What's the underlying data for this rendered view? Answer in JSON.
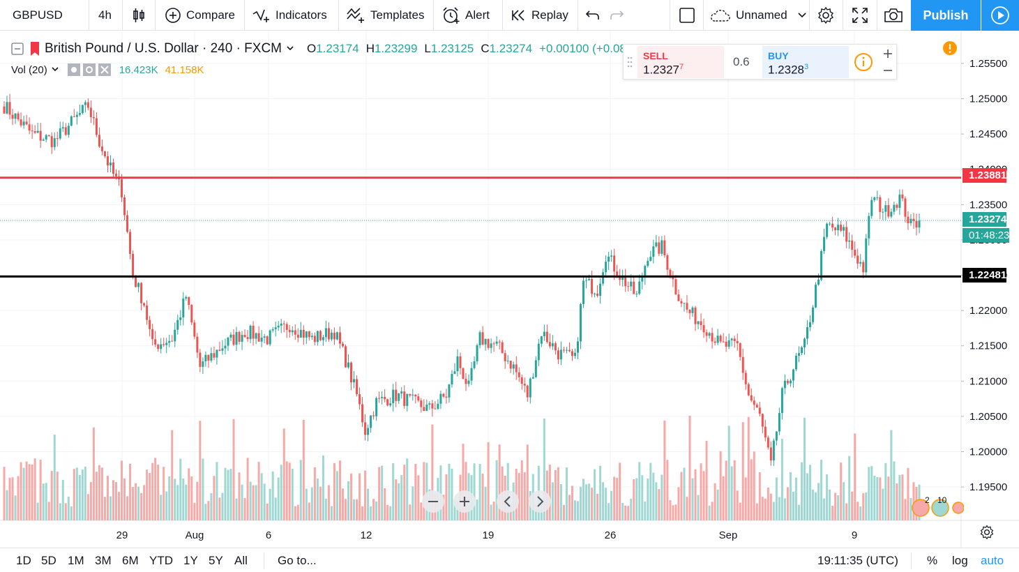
{
  "toolbar": {
    "symbol": "GBPUSD",
    "interval": "4h",
    "compare": "Compare",
    "indicators": "Indicators",
    "templates": "Templates",
    "alert": "Alert",
    "replay": "Replay",
    "layout_name": "Unnamed",
    "publish": "Publish"
  },
  "legend": {
    "title": "British Pound / U.S. Dollar · 240 · FXCM",
    "o_label": "O",
    "o_value": "1.23174",
    "h_label": "H",
    "h_value": "1.23299",
    "l_label": "L",
    "l_value": "1.23125",
    "c_label": "C",
    "c_value": "1.23274",
    "change": "+0.00100 (+0.08%",
    "vol_label": "Vol (20)",
    "vol_value": "16.423K",
    "vol_ma": "41.158K"
  },
  "trade": {
    "sell_label": "SELL",
    "sell_price": "1.2327",
    "sell_sup": "7",
    "spread": "0.6",
    "buy_label": "BUY",
    "buy_price": "1.2328",
    "buy_sup": "3"
  },
  "bottom": {
    "ranges": [
      "1D",
      "5D",
      "1M",
      "3M",
      "6M",
      "YTD",
      "1Y",
      "5Y",
      "All"
    ],
    "goto": "Go to...",
    "time": "19:11:35 (UTC)",
    "percent": "%",
    "log": "log",
    "auto": "auto"
  },
  "colors": {
    "up": "#26a69a",
    "down": "#ef5350",
    "vol_up": "#9fd8d2",
    "vol_down": "#f7a9a7",
    "resistance": "#f23645",
    "support": "#000000",
    "accent": "#2196f3"
  },
  "chart_data": {
    "type": "candlestick",
    "y_ticks": [
      "1.25500",
      "1.25000",
      "1.24500",
      "1.24000",
      "1.23500",
      "1.23000",
      "1.22500",
      "1.22000",
      "1.21500",
      "1.21000",
      "1.20500",
      "1.20000",
      "1.19500"
    ],
    "ylim": [
      1.192,
      1.259
    ],
    "x_ticks": [
      "29",
      "Aug",
      "6",
      "12",
      "19",
      "26",
      "Sep",
      "9"
    ],
    "resistance": "1.23881",
    "support": "1.22481",
    "last_price": "1.23274",
    "countdown": "01:48:23",
    "vol_badge_left": "2",
    "vol_badge_right": "10",
    "anchors": [
      {
        "t": 0,
        "p": 1.249
      },
      {
        "t": 10,
        "p": 1.245
      },
      {
        "t": 18,
        "p": 1.244
      },
      {
        "t": 25,
        "p": 1.247
      },
      {
        "t": 30,
        "p": 1.249
      },
      {
        "t": 34,
        "p": 1.244
      },
      {
        "t": 38,
        "p": 1.24
      },
      {
        "t": 42,
        "p": 1.237
      },
      {
        "t": 46,
        "p": 1.225
      },
      {
        "t": 50,
        "p": 1.221
      },
      {
        "t": 53,
        "p": 1.215
      },
      {
        "t": 60,
        "p": 1.216
      },
      {
        "t": 65,
        "p": 1.222
      },
      {
        "t": 70,
        "p": 1.212
      },
      {
        "t": 78,
        "p": 1.215
      },
      {
        "t": 86,
        "p": 1.217
      },
      {
        "t": 94,
        "p": 1.216
      },
      {
        "t": 102,
        "p": 1.218
      },
      {
        "t": 110,
        "p": 1.216
      },
      {
        "t": 118,
        "p": 1.217
      },
      {
        "t": 122,
        "p": 1.213
      },
      {
        "t": 126,
        "p": 1.208
      },
      {
        "t": 129,
        "p": 1.203
      },
      {
        "t": 133,
        "p": 1.207
      },
      {
        "t": 140,
        "p": 1.208
      },
      {
        "t": 146,
        "p": 1.207
      },
      {
        "t": 152,
        "p": 1.206
      },
      {
        "t": 158,
        "p": 1.208
      },
      {
        "t": 162,
        "p": 1.213
      },
      {
        "t": 166,
        "p": 1.209
      },
      {
        "t": 170,
        "p": 1.216
      },
      {
        "t": 176,
        "p": 1.215
      },
      {
        "t": 182,
        "p": 1.212
      },
      {
        "t": 187,
        "p": 1.208
      },
      {
        "t": 192,
        "p": 1.217
      },
      {
        "t": 198,
        "p": 1.214
      },
      {
        "t": 204,
        "p": 1.213
      },
      {
        "t": 207,
        "p": 1.224
      },
      {
        "t": 212,
        "p": 1.223
      },
      {
        "t": 215,
        "p": 1.228
      },
      {
        "t": 220,
        "p": 1.225
      },
      {
        "t": 226,
        "p": 1.222
      },
      {
        "t": 230,
        "p": 1.228
      },
      {
        "t": 235,
        "p": 1.229
      },
      {
        "t": 240,
        "p": 1.223
      },
      {
        "t": 244,
        "p": 1.22
      },
      {
        "t": 250,
        "p": 1.218
      },
      {
        "t": 256,
        "p": 1.215
      },
      {
        "t": 262,
        "p": 1.215
      },
      {
        "t": 266,
        "p": 1.208
      },
      {
        "t": 270,
        "p": 1.205
      },
      {
        "t": 274,
        "p": 1.198
      },
      {
        "t": 278,
        "p": 1.208
      },
      {
        "t": 282,
        "p": 1.212
      },
      {
        "t": 286,
        "p": 1.215
      },
      {
        "t": 290,
        "p": 1.223
      },
      {
        "t": 294,
        "p": 1.232
      },
      {
        "t": 300,
        "p": 1.231
      },
      {
        "t": 304,
        "p": 1.228
      },
      {
        "t": 307,
        "p": 1.226
      },
      {
        "t": 310,
        "p": 1.236
      },
      {
        "t": 315,
        "p": 1.234
      },
      {
        "t": 320,
        "p": 1.236
      },
      {
        "t": 324,
        "p": 1.232
      },
      {
        "t": 327,
        "p": 1.2327
      }
    ]
  }
}
